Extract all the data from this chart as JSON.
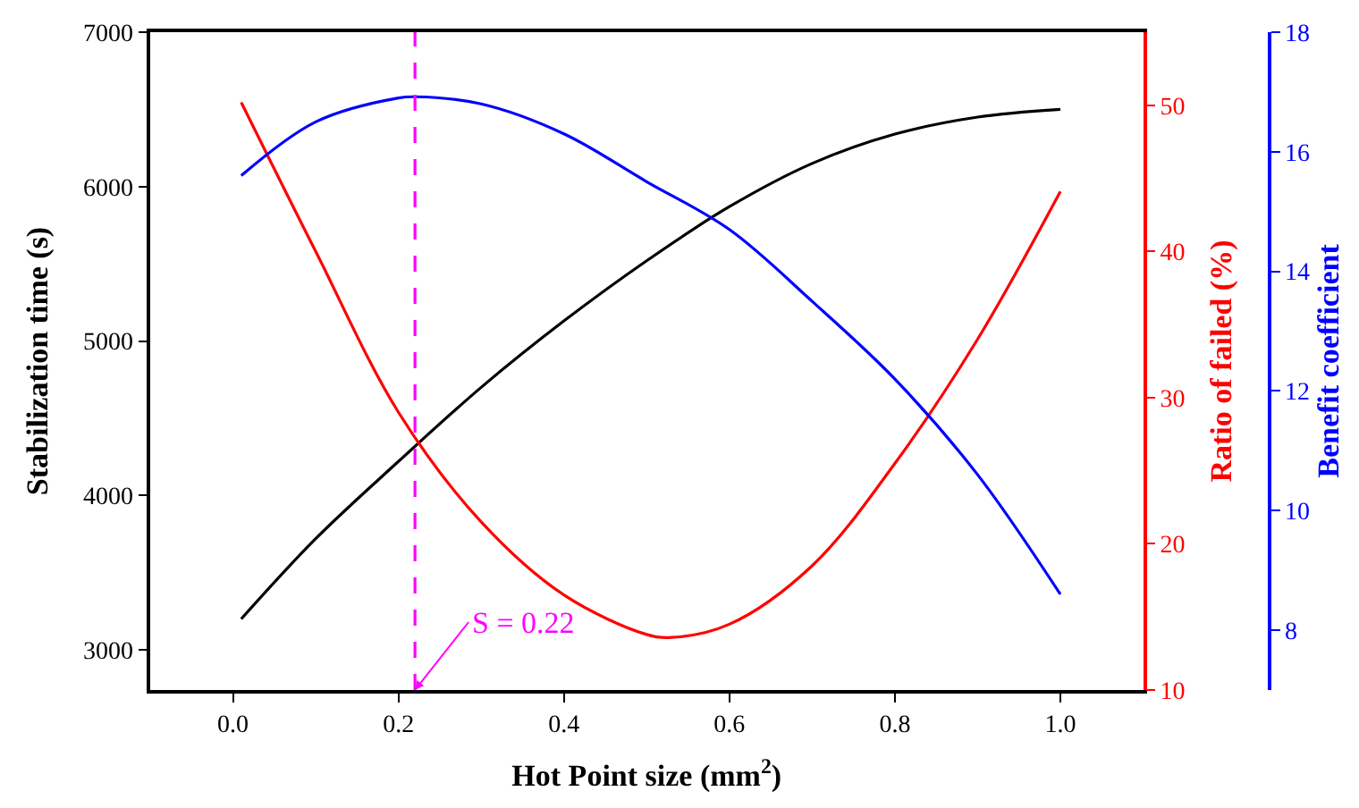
{
  "chart_data": {
    "type": "line",
    "xlabel": "Hot Point size (mm$^{2}$)",
    "ylabel": "Stabilization time (s)",
    "y2label": "Ratio of failed (%)",
    "y3label": "Benefit coefficient",
    "series": [
      {
        "color": "#000000",
        "x": [
          0.01,
          0.1,
          0.2,
          0.3,
          0.4,
          0.5,
          0.6,
          0.7,
          0.8,
          0.9,
          1.0
        ],
        "values": [
          3200,
          3720,
          4220,
          4700,
          5130,
          5520,
          5870,
          6150,
          6340,
          6450,
          6500
        ]
      },
      {
        "color": "#ff0000",
        "axis": "y2",
        "x": [
          0.01,
          0.1,
          0.2,
          0.3,
          0.4,
          0.5,
          0.53,
          0.6,
          0.7,
          0.8,
          0.9,
          1.0
        ],
        "values": [
          50.2,
          40,
          29,
          21.5,
          16.5,
          13.8,
          13.6,
          14.5,
          18.5,
          25.5,
          34,
          44.1
        ]
      },
      {
        "color": "#0000ff",
        "axis": "y3",
        "x": [
          0.01,
          0.1,
          0.2,
          0.22,
          0.3,
          0.4,
          0.5,
          0.6,
          0.7,
          0.8,
          0.9,
          1.0
        ],
        "values": [
          15.6,
          16.5,
          16.9,
          16.92,
          16.8,
          16.3,
          15.5,
          14.7,
          13.5,
          12.2,
          10.6,
          8.6
        ]
      }
    ],
    "xlim": [
      -0.1,
      1.1
    ],
    "xticks": [
      {
        "value": 0,
        "label": "0.0"
      },
      {
        "value": 0.2,
        "label": "0.2"
      },
      {
        "value": 0.4,
        "label": "0.4"
      },
      {
        "value": 0.6,
        "label": "0.6"
      },
      {
        "value": 0.8,
        "label": "0.8"
      },
      {
        "value": 1,
        "label": "1.0"
      }
    ],
    "ylim": [
      2740,
      7000
    ],
    "yticks": [
      3000,
      4000,
      5000,
      6000,
      7000
    ],
    "y2lim": [
      10,
      55
    ],
    "y2ticks": [
      10,
      20,
      30,
      40,
      50
    ],
    "y3lim": [
      7,
      18
    ],
    "y3ticks": [
      8,
      10,
      12,
      14,
      16,
      18
    ],
    "ref_lines": [
      {
        "axis": "x",
        "value": 0.22,
        "color": "#ff00ff",
        "line_style": "dashed"
      }
    ],
    "annotations": [
      {
        "text": "S = 0.22",
        "x": 0.22,
        "y": 2740
      }
    ],
    "legend": false,
    "marker": "none",
    "line_style": "solid"
  }
}
